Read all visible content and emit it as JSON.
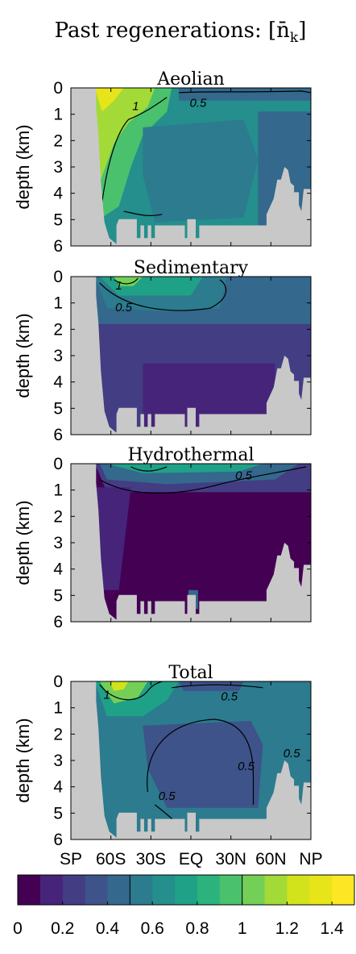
{
  "figure_title": "Past regenerations: [n̄",
  "figure_title_sub": "k",
  "figure_title_close": "]",
  "chart_data": [
    {
      "type": "heatmap",
      "title": "Aeolian",
      "ylabel": "depth (km)",
      "ylim": [
        6,
        0
      ],
      "y_ticks": [
        "0",
        "1",
        "2",
        "3",
        "4",
        "5",
        "6"
      ],
      "contour_labels": [
        "1",
        "0.5"
      ]
    },
    {
      "type": "heatmap",
      "title": "Sedimentary",
      "ylabel": "depth (km)",
      "ylim": [
        6,
        0
      ],
      "y_ticks": [
        "0",
        "1",
        "2",
        "3",
        "4",
        "5",
        "6"
      ],
      "contour_labels": [
        "0.5",
        "1"
      ]
    },
    {
      "type": "heatmap",
      "title": "Hydrothermal",
      "ylabel": "depth (km)",
      "ylim": [
        6,
        0
      ],
      "y_ticks": [
        "0",
        "1",
        "2",
        "3",
        "4",
        "5",
        "6"
      ],
      "contour_labels": [
        "0.5"
      ]
    },
    {
      "type": "heatmap",
      "title": "Total",
      "ylabel": "depth (km)",
      "ylim": [
        6,
        0
      ],
      "y_ticks": [
        "0",
        "1",
        "2",
        "3",
        "4",
        "5",
        "6"
      ],
      "x_ticks": [
        "SP",
        "60S",
        "30S",
        "EQ",
        "30N",
        "60N",
        "NP"
      ],
      "contour_labels": [
        "1",
        "0.5",
        "0.5",
        "0.5",
        "0.5"
      ]
    }
  ],
  "colorbar": {
    "levels": [
      0,
      0.1,
      0.2,
      0.3,
      0.4,
      0.5,
      0.6,
      0.7,
      0.8,
      0.9,
      1.0,
      1.1,
      1.2,
      1.3,
      1.4,
      1.5
    ],
    "tick_labels": [
      "0",
      "0.2",
      "0.4",
      "0.6",
      "0.8",
      "1",
      "1.2",
      "1.4"
    ],
    "tick_values": [
      0,
      0.2,
      0.4,
      0.6,
      0.8,
      1.0,
      1.2,
      1.4
    ],
    "range": [
      0,
      1.5
    ],
    "marked_contours": [
      0.5,
      1.0
    ]
  },
  "colors": {
    "land": "#c8c8c8",
    "palette": [
      "#440154",
      "#46247a",
      "#433d84",
      "#3d5389",
      "#34688c",
      "#2c7b8e",
      "#248f8c",
      "#1fa187",
      "#2bb27d",
      "#4ac16d",
      "#74cf56",
      "#a3da37",
      "#d2e21b",
      "#e7e419",
      "#fde725"
    ]
  }
}
